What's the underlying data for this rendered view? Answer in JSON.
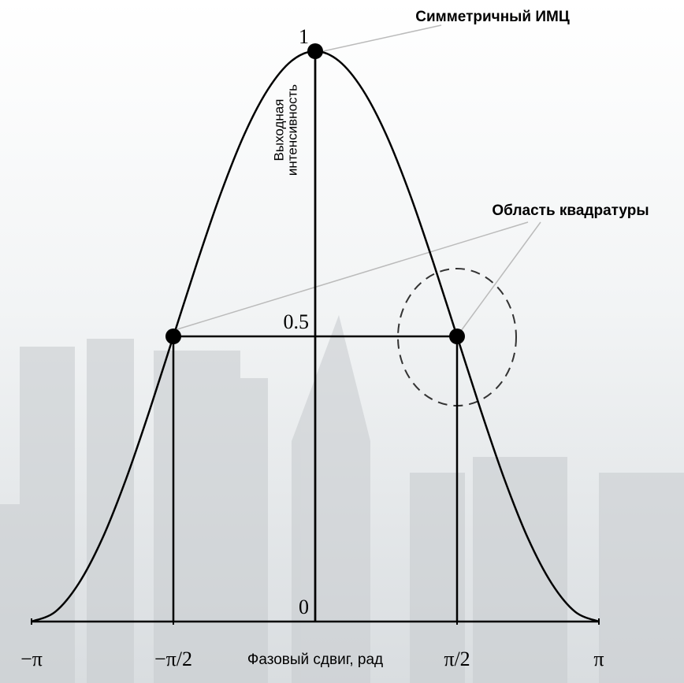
{
  "chart_data": {
    "type": "line",
    "annotations": [
      "Симметричный ИМЦ",
      "Область квадратуры"
    ],
    "xlabel": "Фазовый сдвиг, рад",
    "ylabel": [
      "Выходная",
      "интенсивность"
    ],
    "color": "#000000",
    "x": [
      -3.1416,
      -2.8798,
      -2.618,
      -2.3562,
      -2.0944,
      -1.8326,
      -1.5708,
      -1.309,
      -1.0472,
      -0.7854,
      -0.5236,
      -0.2618,
      0,
      0.2618,
      0.5236,
      0.7854,
      1.0472,
      1.309,
      1.5708,
      1.8326,
      2.0944,
      2.3562,
      2.618,
      2.8798,
      3.1416
    ],
    "values": [
      0,
      0.017,
      0.067,
      0.146,
      0.25,
      0.371,
      0.5,
      0.629,
      0.75,
      0.854,
      0.933,
      0.983,
      1,
      0.983,
      0.933,
      0.854,
      0.75,
      0.629,
      0.5,
      0.371,
      0.25,
      0.146,
      0.067,
      0.017,
      0
    ],
    "points": {
      "x": [
        -1.5708,
        0,
        1.5708
      ],
      "values": [
        0.5,
        1,
        0.5
      ]
    },
    "xlim": [
      -3.1416,
      3.1416
    ],
    "ylim": [
      0,
      1
    ],
    "xticks": [
      {
        "value": -3.1416,
        "label": "−π"
      },
      {
        "value": -1.5708,
        "label": "−π/2"
      },
      {
        "value": 1.5708,
        "label": "π/2"
      },
      {
        "value": 3.1416,
        "label": "π"
      }
    ],
    "yticks": [
      0,
      0.5,
      1
    ]
  }
}
